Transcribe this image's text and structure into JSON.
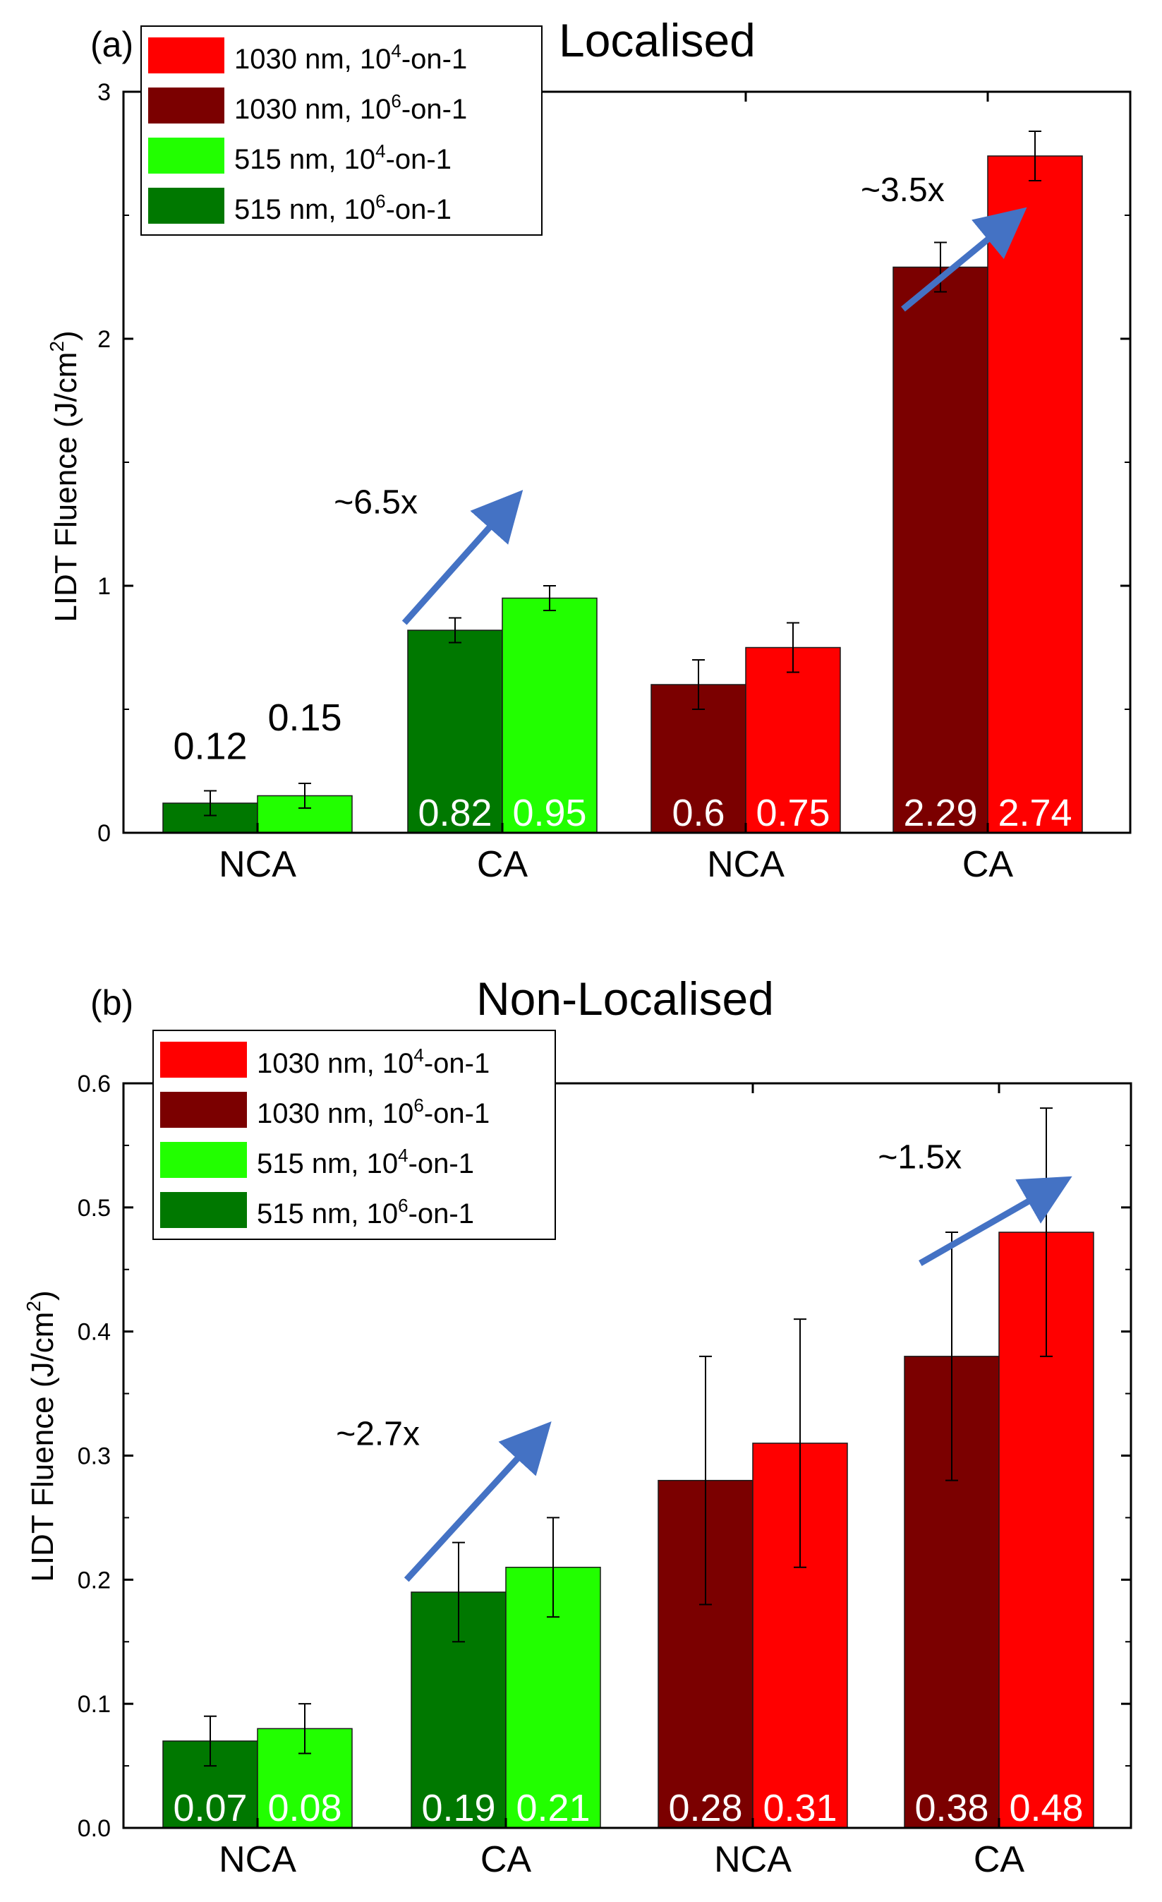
{
  "chart_data": [
    {
      "type": "bar",
      "panel_label": "(a)",
      "title": "Localised",
      "xlabel": "",
      "ylabel": "LIDT Fluence (J/cm",
      "ylabel_sup": "2",
      "ylabel_tail": ")",
      "ylim": [
        0,
        3
      ],
      "yticks": [
        "0",
        "1",
        "2",
        "3"
      ],
      "ytick_values": [
        0,
        1,
        2,
        3
      ],
      "categories": [
        "NCA",
        "CA",
        "NCA",
        "CA"
      ],
      "groups": [
        {
          "category": "NCA",
          "bars": [
            {
              "series": "515 nm, 10^6-on-1",
              "value": 0.12,
              "error": 0.05,
              "label": "0.12",
              "label_position": "above"
            },
            {
              "series": "515 nm, 10^4-on-1",
              "value": 0.15,
              "error": 0.05,
              "label": "0.15",
              "label_position": "above"
            }
          ]
        },
        {
          "category": "CA",
          "bars": [
            {
              "series": "515 nm, 10^6-on-1",
              "value": 0.82,
              "error": 0.05,
              "label": "0.82",
              "label_position": "inside"
            },
            {
              "series": "515 nm, 10^4-on-1",
              "value": 0.95,
              "error": 0.05,
              "label": "0.95",
              "label_position": "inside"
            }
          ]
        },
        {
          "category": "NCA",
          "bars": [
            {
              "series": "1030 nm, 10^6-on-1",
              "value": 0.6,
              "error": 0.1,
              "label": "0.6",
              "label_position": "inside"
            },
            {
              "series": "1030 nm, 10^4-on-1",
              "value": 0.75,
              "error": 0.1,
              "label": "0.75",
              "label_position": "inside"
            }
          ]
        },
        {
          "category": "CA",
          "bars": [
            {
              "series": "1030 nm, 10^6-on-1",
              "value": 2.29,
              "error": 0.1,
              "label": "2.29",
              "label_position": "inside"
            },
            {
              "series": "1030 nm, 10^4-on-1",
              "value": 2.74,
              "error": 0.1,
              "label": "2.74",
              "label_position": "inside"
            }
          ]
        }
      ],
      "legend": [
        {
          "pre": "1030 nm, 10",
          "sup": "4",
          "post": "-on-1",
          "color": "#ff0000"
        },
        {
          "pre": "1030 nm, 10",
          "sup": "6",
          "post": "-on-1",
          "color": "#7b0000"
        },
        {
          "pre": "515 nm, 10",
          "sup": "4",
          "post": "-on-1",
          "color": "#22ff00"
        },
        {
          "pre": "515 nm, 10",
          "sup": "6",
          "post": "-on-1",
          "color": "#007800"
        }
      ],
      "annotations": [
        {
          "text": "~6.5x",
          "from": [
            0.6,
            0.85
          ],
          "to": [
            1.05,
            1.35
          ]
        },
        {
          "text": "~3.5x",
          "from": [
            2.65,
            2.12
          ],
          "to": [
            3.12,
            2.5
          ]
        }
      ]
    },
    {
      "type": "bar",
      "panel_label": "(b)",
      "title": "Non-Localised",
      "xlabel": "",
      "ylabel": "LIDT Fluence (J/cm",
      "ylabel_sup": "2",
      "ylabel_tail": ")",
      "ylim": [
        0,
        0.6
      ],
      "yticks": [
        "0.0",
        "0.1",
        "0.2",
        "0.3",
        "0.4",
        "0.5",
        "0.6"
      ],
      "ytick_values": [
        0,
        0.1,
        0.2,
        0.3,
        0.4,
        0.5,
        0.6
      ],
      "categories": [
        "NCA",
        "CA",
        "NCA",
        "CA"
      ],
      "groups": [
        {
          "category": "NCA",
          "bars": [
            {
              "series": "515 nm, 10^6-on-1",
              "value": 0.07,
              "error": 0.02,
              "label": "0.07",
              "label_position": "inside"
            },
            {
              "series": "515 nm, 10^4-on-1",
              "value": 0.08,
              "error": 0.02,
              "label": "0.08",
              "label_position": "inside"
            }
          ]
        },
        {
          "category": "CA",
          "bars": [
            {
              "series": "515 nm, 10^6-on-1",
              "value": 0.19,
              "error": 0.04,
              "label": "0.19",
              "label_position": "inside"
            },
            {
              "series": "515 nm, 10^4-on-1",
              "value": 0.21,
              "error": 0.04,
              "label": "0.21",
              "label_position": "inside"
            }
          ]
        },
        {
          "category": "NCA",
          "bars": [
            {
              "series": "1030 nm, 10^6-on-1",
              "value": 0.28,
              "error": 0.1,
              "label": "0.28",
              "label_position": "inside"
            },
            {
              "series": "1030 nm, 10^4-on-1",
              "value": 0.31,
              "error": 0.1,
              "label": "0.31",
              "label_position": "inside"
            }
          ]
        },
        {
          "category": "CA",
          "bars": [
            {
              "series": "1030 nm, 10^6-on-1",
              "value": 0.38,
              "error": 0.1,
              "label": "0.38",
              "label_position": "inside"
            },
            {
              "series": "1030 nm, 10^4-on-1",
              "value": 0.48,
              "error": 0.1,
              "label": "0.48",
              "label_position": "inside"
            }
          ]
        }
      ],
      "legend": [
        {
          "pre": "1030 nm, 10",
          "sup": "4",
          "post": "-on-1",
          "color": "#ff0000"
        },
        {
          "pre": "1030 nm, 10",
          "sup": "6",
          "post": "-on-1",
          "color": "#7b0000"
        },
        {
          "pre": "515 nm, 10",
          "sup": "4",
          "post": "-on-1",
          "color": "#22ff00"
        },
        {
          "pre": "515 nm, 10",
          "sup": "6",
          "post": "-on-1",
          "color": "#007800"
        }
      ],
      "annotations": [
        {
          "text": "~2.7x",
          "from": [
            0.6,
            0.2
          ],
          "to": [
            1.15,
            0.32
          ]
        },
        {
          "text": "~1.5x",
          "from": [
            2.68,
            0.455
          ],
          "to": [
            3.25,
            0.52
          ]
        }
      ]
    }
  ],
  "colors": {
    "515nm_1e6": "#007800",
    "515nm_1e4": "#22ff00",
    "1030nm_1e6": "#7b0000",
    "1030nm_1e4": "#ff0000",
    "arrow": "#4472c4",
    "inside_label": "#ffffff",
    "outside_label": "#000000"
  }
}
